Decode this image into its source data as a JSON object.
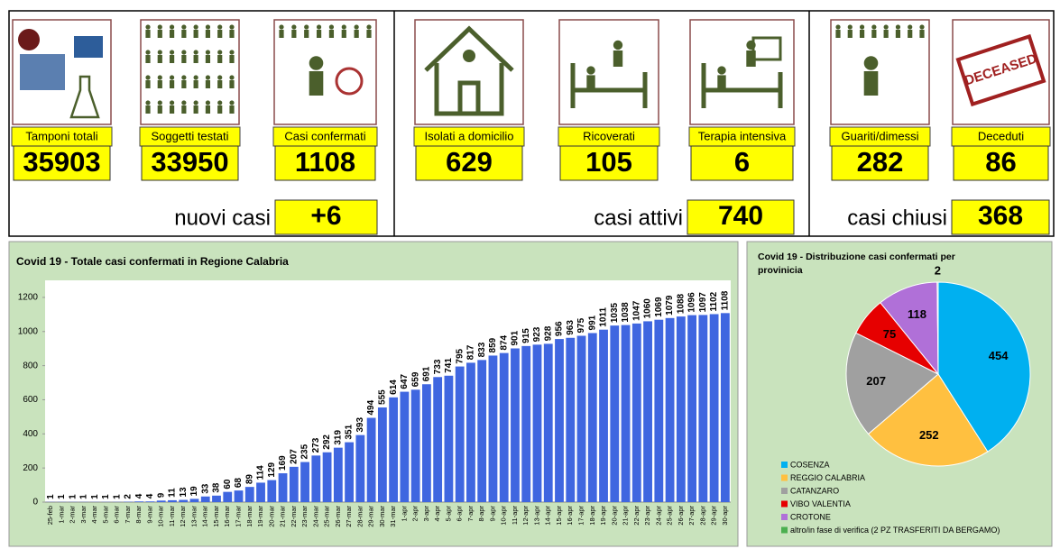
{
  "stats": {
    "groups": [
      {
        "items": [
          {
            "label": "Tamponi totali",
            "value": 35903
          },
          {
            "label": "Soggetti testati",
            "value": 33950
          },
          {
            "label": "Casi confermati",
            "value": 1108
          }
        ],
        "summary_label": "nuovi casi",
        "summary_value": "+6"
      },
      {
        "items": [
          {
            "label": "Isolati a domicilio",
            "value": 629
          },
          {
            "label": "Ricoverati",
            "value": 105
          },
          {
            "label": "Terapia intensiva",
            "value": 6
          }
        ],
        "summary_label": "casi attivi",
        "summary_value": 740
      },
      {
        "items": [
          {
            "label": "Guariti/dimessi",
            "value": 282
          },
          {
            "label": "Deceduti",
            "value": 86
          }
        ],
        "summary_label": "casi chiusi",
        "summary_value": 368
      }
    ],
    "deceased_stamp": "DECEASED"
  },
  "chart_data": [
    {
      "type": "bar",
      "title": "Covid 19 - Totale casi confermati in Regione Calabria",
      "color": "#3f66e0",
      "categories": [
        "25-feb",
        "1-mar",
        "2-mar",
        "3-mar",
        "4-mar",
        "5-mar",
        "6-mar",
        "7-mar",
        "8-mar",
        "9-mar",
        "10-mar",
        "11-mar",
        "12-mar",
        "13-mar",
        "14-mar",
        "15-mar",
        "16-mar",
        "17-mar",
        "18-mar",
        "19-mar",
        "20-mar",
        "21-mar",
        "22-mar",
        "23-mar",
        "24-mar",
        "25-mar",
        "26-mar",
        "27-mar",
        "28-mar",
        "29-mar",
        "30-mar",
        "31-mar",
        "1-apr",
        "2-apr",
        "3-apr",
        "4-apr",
        "5-apr",
        "6-apr",
        "7-apr",
        "8-apr",
        "9-apr",
        "10-apr",
        "11-apr",
        "12-apr",
        "13-apr",
        "14-apr",
        "15-apr",
        "16-apr",
        "17-apr",
        "18-apr",
        "19-apr",
        "20-apr",
        "21-apr",
        "22-apr",
        "23-apr",
        "24-apr",
        "25-apr",
        "26-apr",
        "27-apr",
        "28-apr",
        "29-apr",
        "30-apr"
      ],
      "values": [
        1,
        1,
        1,
        1,
        1,
        1,
        1,
        2,
        4,
        4,
        9,
        11,
        13,
        19,
        33,
        38,
        60,
        68,
        89,
        114,
        129,
        169,
        207,
        235,
        273,
        292,
        319,
        351,
        393,
        494,
        555,
        614,
        647,
        659,
        691,
        733,
        741,
        795,
        817,
        833,
        859,
        874,
        901,
        915,
        923,
        928,
        956,
        963,
        975,
        991,
        1011,
        1035,
        1038,
        1047,
        1060,
        1069,
        1079,
        1088,
        1096,
        1097,
        1102,
        1108
      ],
      "ylim": [
        0,
        1300
      ],
      "yticks": [
        0,
        200,
        400,
        600,
        800,
        1000,
        1200
      ],
      "grid": false
    },
    {
      "type": "pie",
      "title": [
        "Covid 19 - Distribuzione casi confermati per",
        "provinicia"
      ],
      "categories": [
        "COSENZA",
        "REGGIO CALABRIA",
        "CATANZARO",
        "VIBO VALENTIA",
        "CROTONE",
        "altro/in fase di verifica (2 PZ TRASFERITI DA BERGAMO)"
      ],
      "values": [
        454,
        252,
        207,
        75,
        118,
        2
      ],
      "colors": [
        "#00b0f0",
        "#ffc040",
        "#a0a0a0",
        "#e60000",
        "#b070d8",
        "#4caf50"
      ]
    }
  ]
}
